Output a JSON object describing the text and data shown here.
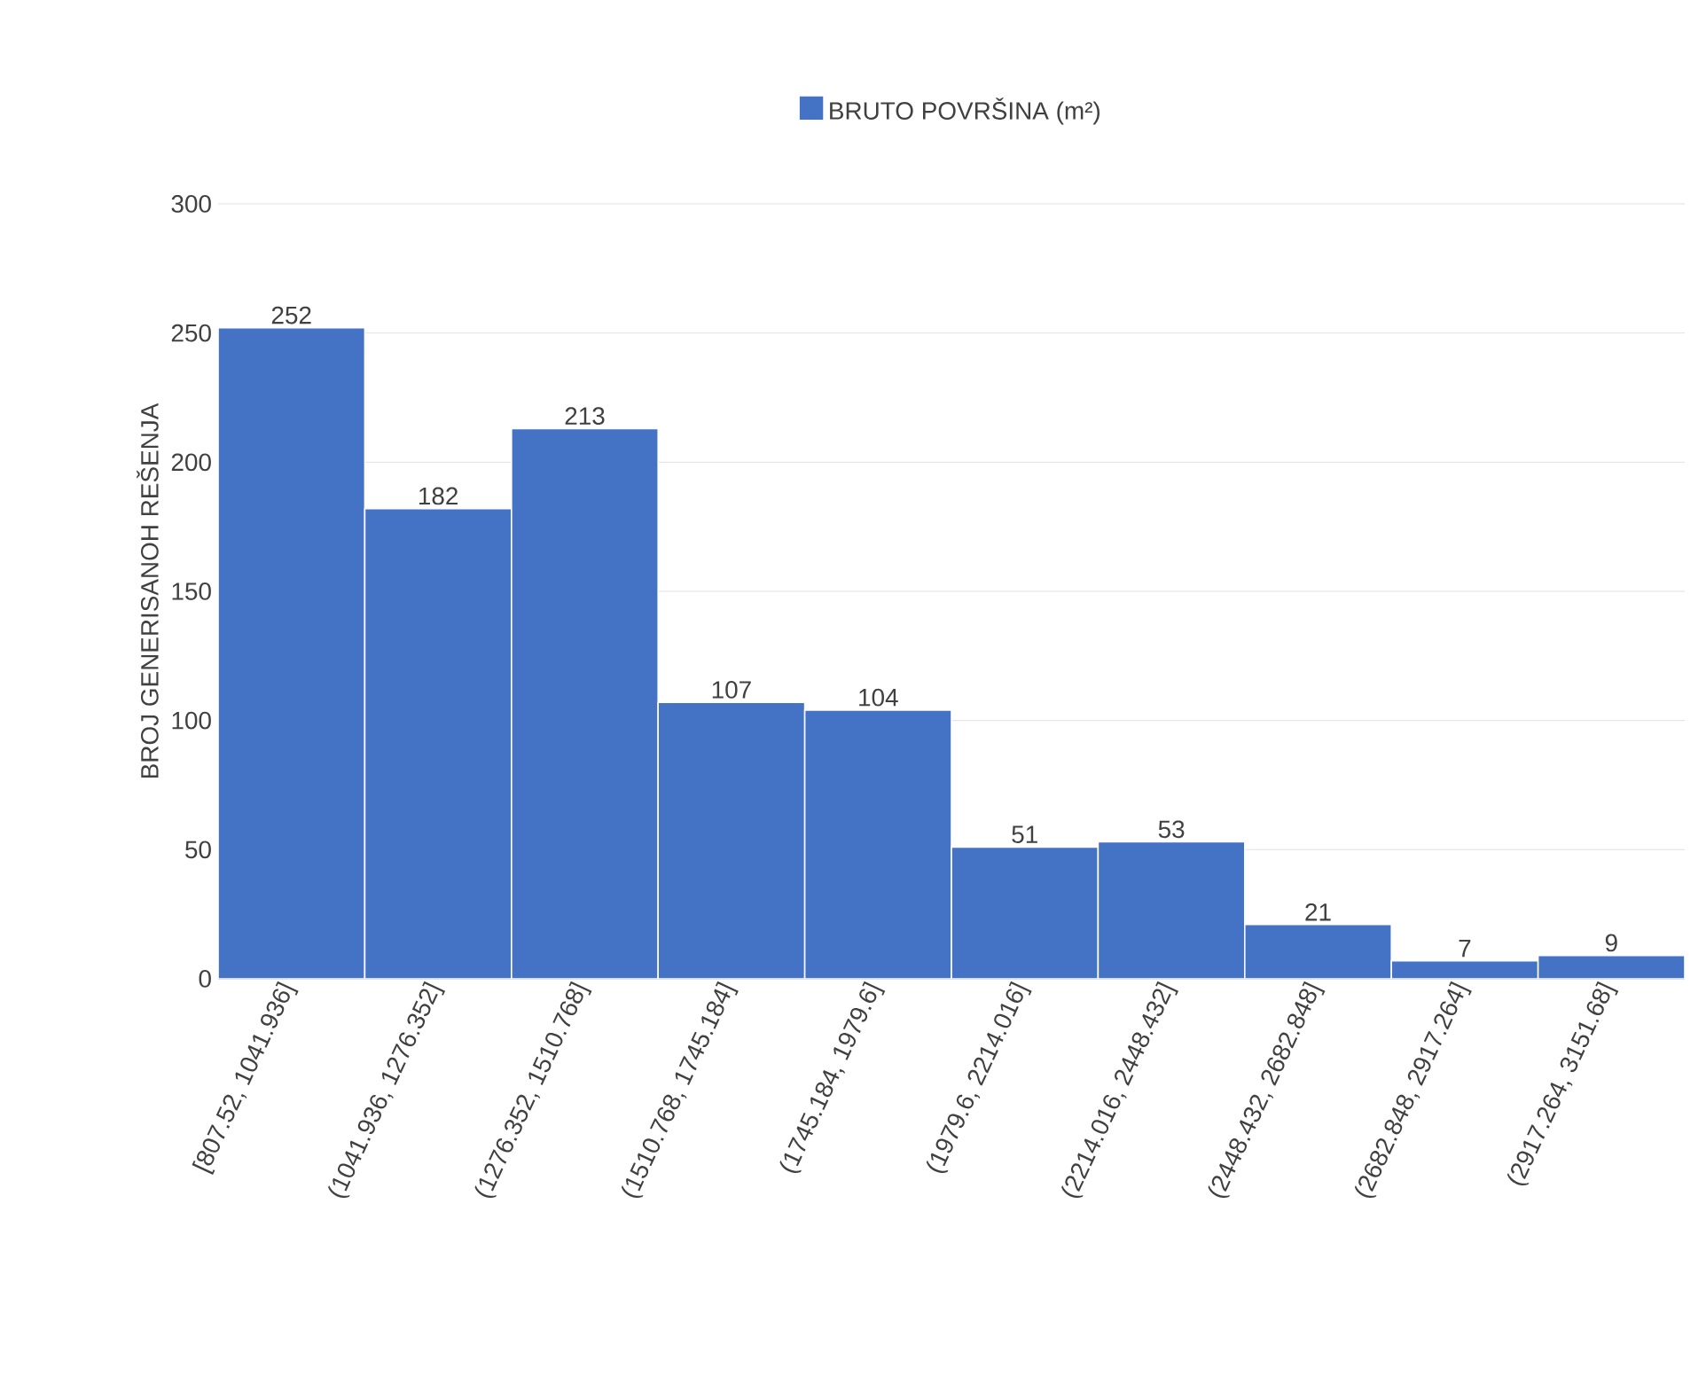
{
  "chart_data": {
    "type": "bar",
    "ylabel": "BROJ GENERISANOH REŠENJA",
    "categories": [
      "[807.52, 1041.936]",
      "(1041.936, 1276.352]",
      "(1276.352, 1510.768]",
      "(1510.768, 1745.184]",
      "(1745.184, 1979.6]",
      "(1979.6, 2214.016]",
      "(2214.016, 2448.432]",
      "(2448.432, 2682.848]",
      "(2682.848, 2917.264]",
      "(2917.264, 3151.68]"
    ],
    "series": [
      {
        "name": "BRUTO POVRŠINA (m²)",
        "color": "#4472c4",
        "values": [
          252,
          182,
          213,
          107,
          104,
          51,
          53,
          21,
          7,
          9
        ]
      }
    ],
    "ylim": [
      0,
      300
    ],
    "yticks": [
      0,
      50,
      100,
      150,
      200,
      250,
      300
    ],
    "grid": "y",
    "legend": "top",
    "data_labels": true
  }
}
